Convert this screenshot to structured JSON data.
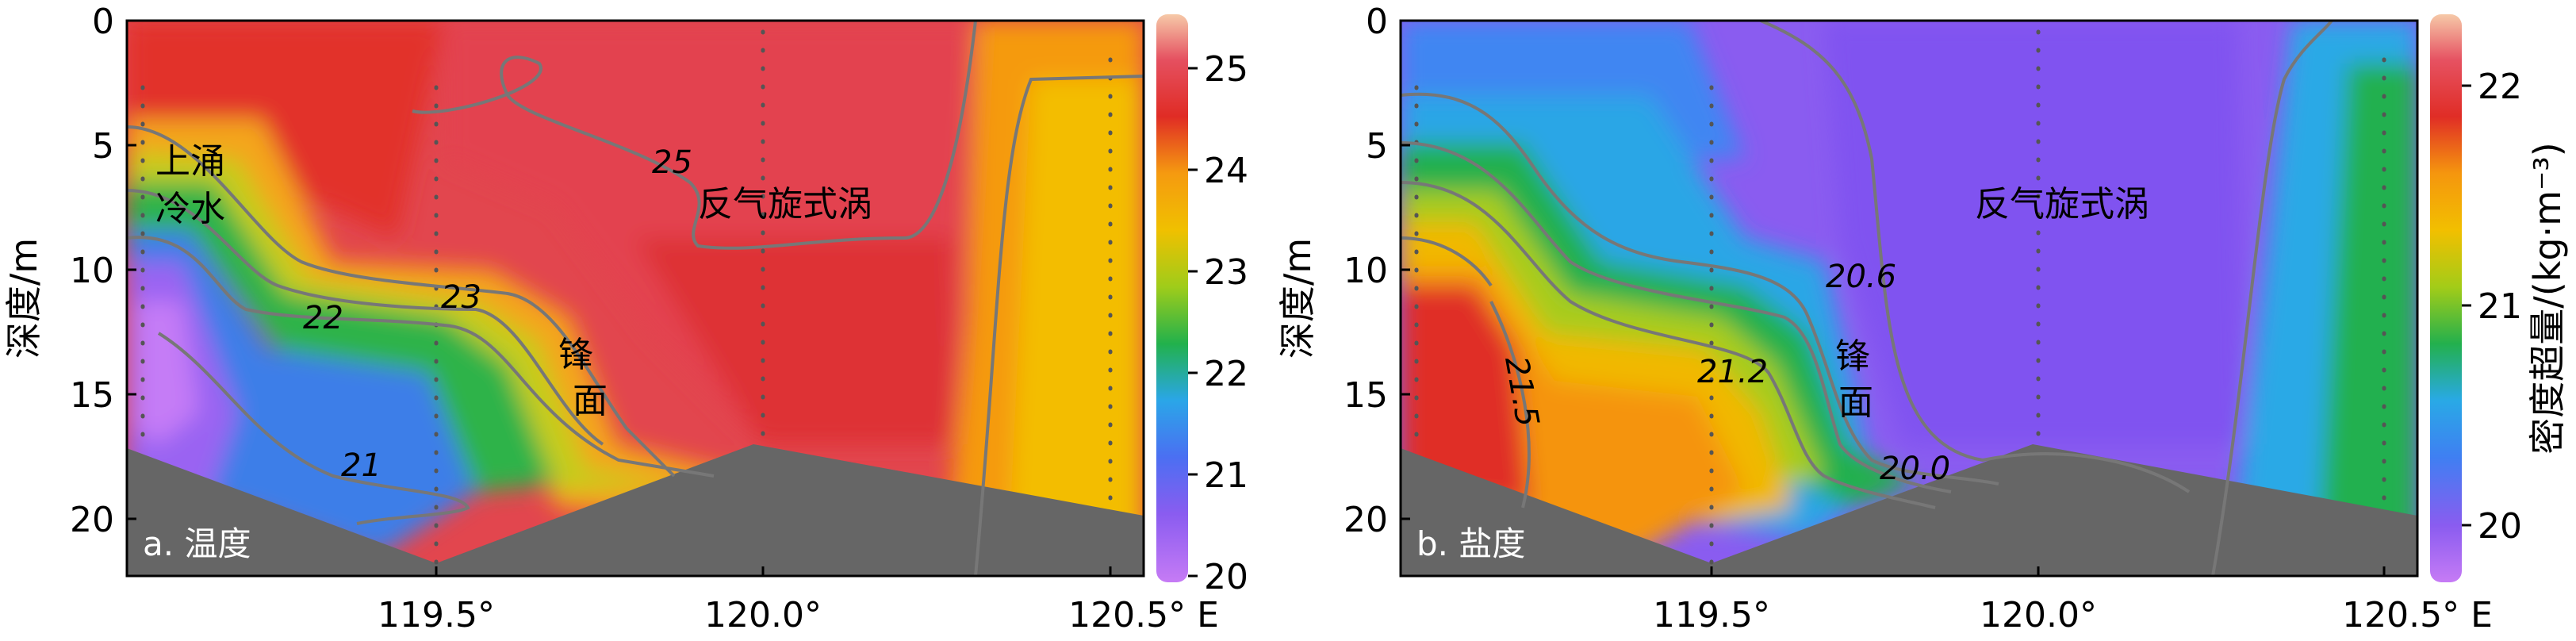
{
  "chart_data": [
    {
      "type": "heatmap",
      "panel_label": "a. 温度",
      "ylabel": "深度/m",
      "y_ticks": [
        "0",
        "5",
        "10",
        "15",
        "20"
      ],
      "x_ticks": [
        "119.5°",
        "120.0°",
        "120.5° E"
      ],
      "colorbar": {
        "ticks": [
          "20",
          "21",
          "22",
          "23",
          "24",
          "25"
        ],
        "range": [
          20,
          25.5
        ]
      },
      "contours": [
        {
          "value": "21",
          "label": "21"
        },
        {
          "value": "22",
          "label": "22"
        },
        {
          "value": "23",
          "label": "23"
        },
        {
          "value": "25",
          "label": "25"
        }
      ],
      "annotations": {
        "upwelling_line1": "上涌",
        "upwelling_line2": "冷水",
        "front_line1": "锋",
        "front_line2": "面",
        "eddy": "反气旋式涡"
      }
    },
    {
      "type": "heatmap",
      "panel_label": "b. 盐度",
      "ylabel": "深度/m",
      "colorbar_label": "密度超量/(kg·m⁻³)",
      "y_ticks": [
        "0",
        "5",
        "10",
        "15",
        "20"
      ],
      "x_ticks": [
        "119.5°",
        "120.0°",
        "120.5° E"
      ],
      "colorbar": {
        "ticks": [
          "20",
          "21",
          "22"
        ],
        "range": [
          19.7,
          22.4
        ]
      },
      "contours": [
        {
          "value": "20.0",
          "label": "20.0"
        },
        {
          "value": "20.6",
          "label": "20.6"
        },
        {
          "value": "21.2",
          "label": "21.2"
        },
        {
          "value": "21.5",
          "label": "21.5"
        }
      ],
      "annotations": {
        "front_line1": "锋",
        "front_line2": "面",
        "eddy": "反气旋式涡"
      }
    }
  ]
}
